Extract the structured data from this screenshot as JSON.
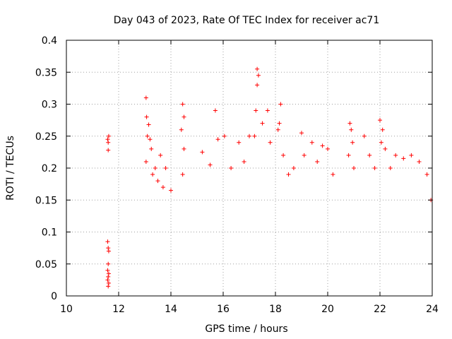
{
  "chart_data": {
    "type": "scatter",
    "title": "Day 043 of 2023, Rate Of TEC Index for receiver ac71",
    "xlabel": "GPS time / hours",
    "ylabel": "ROTI / TECUs",
    "xlim": [
      10,
      24
    ],
    "ylim": [
      0,
      0.4
    ],
    "x_ticks": [
      10,
      12,
      14,
      16,
      18,
      20,
      22,
      24
    ],
    "y_ticks": [
      0,
      0.05,
      0.1,
      0.15,
      0.2,
      0.25,
      0.3,
      0.35,
      0.4
    ],
    "x_tick_labels": [
      "10",
      "12",
      "14",
      "16",
      "18",
      "20",
      "22",
      "24"
    ],
    "y_tick_labels": [
      "0",
      "0.05",
      "0.1",
      "0.15",
      "0.2",
      "0.25",
      "0.3",
      "0.35",
      "0.4"
    ],
    "grid": true,
    "marker": "+",
    "marker_color": "#ff0000",
    "series": [
      {
        "points": [
          [
            11.58,
            0.245
          ],
          [
            11.6,
            0.24
          ],
          [
            11.62,
            0.25
          ],
          [
            11.6,
            0.228
          ],
          [
            11.58,
            0.085
          ],
          [
            11.6,
            0.075
          ],
          [
            11.62,
            0.07
          ],
          [
            11.6,
            0.05
          ],
          [
            11.58,
            0.04
          ],
          [
            11.62,
            0.035
          ],
          [
            11.6,
            0.03
          ],
          [
            11.58,
            0.025
          ],
          [
            11.62,
            0.02
          ],
          [
            11.6,
            0.015
          ],
          [
            13.05,
            0.31
          ],
          [
            13.07,
            0.28
          ],
          [
            13.1,
            0.25
          ],
          [
            13.15,
            0.268
          ],
          [
            13.2,
            0.245
          ],
          [
            13.25,
            0.23
          ],
          [
            13.05,
            0.21
          ],
          [
            13.3,
            0.19
          ],
          [
            13.4,
            0.2
          ],
          [
            13.5,
            0.18
          ],
          [
            13.6,
            0.22
          ],
          [
            13.8,
            0.2
          ],
          [
            13.7,
            0.17
          ],
          [
            14.0,
            0.165
          ],
          [
            14.45,
            0.3
          ],
          [
            14.5,
            0.28
          ],
          [
            14.4,
            0.26
          ],
          [
            14.5,
            0.23
          ],
          [
            14.45,
            0.19
          ],
          [
            15.2,
            0.225
          ],
          [
            15.5,
            0.205
          ],
          [
            15.7,
            0.29
          ],
          [
            15.8,
            0.245
          ],
          [
            16.05,
            0.25
          ],
          [
            16.3,
            0.2
          ],
          [
            16.6,
            0.24
          ],
          [
            16.8,
            0.21
          ],
          [
            17.0,
            0.25
          ],
          [
            17.2,
            0.25
          ],
          [
            17.3,
            0.355
          ],
          [
            17.35,
            0.345
          ],
          [
            17.3,
            0.33
          ],
          [
            17.25,
            0.29
          ],
          [
            17.5,
            0.27
          ],
          [
            17.7,
            0.29
          ],
          [
            17.8,
            0.24
          ],
          [
            18.2,
            0.3
          ],
          [
            18.15,
            0.27
          ],
          [
            18.1,
            0.26
          ],
          [
            18.3,
            0.22
          ],
          [
            18.5,
            0.19
          ],
          [
            18.7,
            0.2
          ],
          [
            19.0,
            0.255
          ],
          [
            19.1,
            0.22
          ],
          [
            19.4,
            0.24
          ],
          [
            19.6,
            0.21
          ],
          [
            19.8,
            0.235
          ],
          [
            20.0,
            0.23
          ],
          [
            20.2,
            0.19
          ],
          [
            20.85,
            0.27
          ],
          [
            20.9,
            0.26
          ],
          [
            20.95,
            0.24
          ],
          [
            20.8,
            0.22
          ],
          [
            21.0,
            0.2
          ],
          [
            21.4,
            0.25
          ],
          [
            21.6,
            0.22
          ],
          [
            21.8,
            0.2
          ],
          [
            22.0,
            0.275
          ],
          [
            22.1,
            0.26
          ],
          [
            22.05,
            0.24
          ],
          [
            22.2,
            0.23
          ],
          [
            22.4,
            0.2
          ],
          [
            22.6,
            0.22
          ],
          [
            22.9,
            0.215
          ],
          [
            23.2,
            0.22
          ],
          [
            23.5,
            0.21
          ],
          [
            23.8,
            0.19
          ],
          [
            23.95,
            0.15
          ]
        ]
      }
    ]
  }
}
